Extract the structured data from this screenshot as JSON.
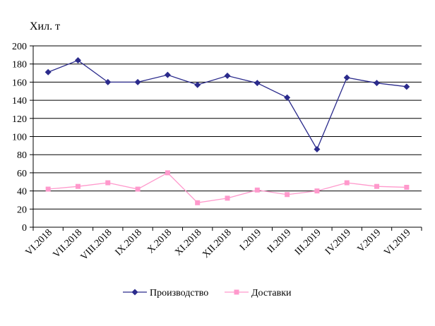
{
  "chart_data": {
    "type": "line",
    "unit_label": "Хил. т",
    "categories": [
      "VI.2018",
      "VII.2018",
      "VIII.2018",
      "IX.2018",
      "X.2018",
      "XI.2018",
      "XII.2018",
      "I.2019",
      "II.2019",
      "III.2019",
      "IV.2019",
      "V.2019",
      "VI.2019"
    ],
    "series": [
      {
        "name": "Производство",
        "color": "#2b2b8c",
        "marker": "diamond",
        "values": [
          171,
          184,
          160,
          160,
          168,
          157,
          167,
          159,
          143,
          86,
          165,
          159,
          155
        ]
      },
      {
        "name": "Доставки",
        "color": "#ff99cc",
        "marker": "square",
        "values": [
          42,
          45,
          49,
          42,
          60,
          27,
          32,
          41,
          36,
          40,
          49,
          45,
          44
        ]
      }
    ],
    "ylim": [
      0,
      200
    ],
    "yticks": [
      0,
      20,
      40,
      60,
      80,
      100,
      120,
      140,
      160,
      180,
      200
    ],
    "grid": true,
    "legend_position": "bottom"
  }
}
